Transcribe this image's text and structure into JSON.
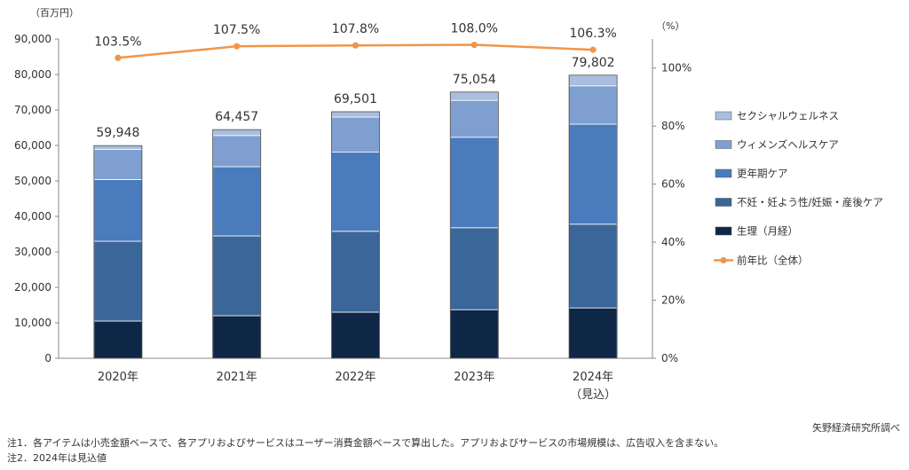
{
  "chart_data": {
    "type": "bar",
    "stacked": true,
    "categories": [
      "2020年",
      "2021年",
      "2022年",
      "2023年",
      "2024年"
    ],
    "category_sublabels": [
      "",
      "",
      "",
      "",
      "（見込）"
    ],
    "left_axis": {
      "unit_label": "（百万円）",
      "ylim": [
        0,
        90000
      ],
      "ticks": [
        "0",
        "10,000",
        "20,000",
        "30,000",
        "40,000",
        "50,000",
        "60,000",
        "70,000",
        "80,000",
        "90,000"
      ]
    },
    "right_axis": {
      "unit_label": "（%）",
      "ylim": [
        0,
        110
      ],
      "ticks": [
        "0%",
        "20%",
        "40%",
        "60%",
        "80%",
        "100%"
      ]
    },
    "series": [
      {
        "name": "生理（月経）",
        "color": "#0f2746",
        "values": [
          10500,
          12000,
          13000,
          13700,
          14200
        ]
      },
      {
        "name": "不妊・妊よう性/妊娠・産後ケア",
        "color": "#3b6699",
        "values": [
          22500,
          22500,
          22800,
          23100,
          23600
        ]
      },
      {
        "name": "更年期ケア",
        "color": "#4a7bbd",
        "values": [
          17400,
          19500,
          22300,
          25500,
          28200
        ]
      },
      {
        "name": "ウィメンズヘルスケア",
        "color": "#7f9fd0",
        "values": [
          8500,
          8800,
          9900,
          10400,
          10800
        ]
      },
      {
        "name": "セクシャルウェルネス",
        "color": "#a9bedf",
        "values": [
          1048,
          1657,
          1501,
          2354,
          3002
        ]
      }
    ],
    "totals": [
      "59,948",
      "64,457",
      "69,501",
      "75,054",
      "79,802"
    ],
    "line": {
      "name": "前年比（全体）",
      "color": "#f0964a",
      "values": [
        103.5,
        107.5,
        107.8,
        108.0,
        106.3
      ],
      "labels": [
        "103.5%",
        "107.5%",
        "107.8%",
        "108.0%",
        "106.3%"
      ]
    },
    "legend_position": "right"
  },
  "footer": {
    "source": "矢野経済研究所調べ",
    "notes": [
      "注1．各アイテムは小売金額ベースで、各アプリおよびサービスはユーザー消費金額ベースで算出した。アプリおよびサービスの市場規模は、広告収入を含まない。",
      "注2．2024年は見込値"
    ]
  }
}
